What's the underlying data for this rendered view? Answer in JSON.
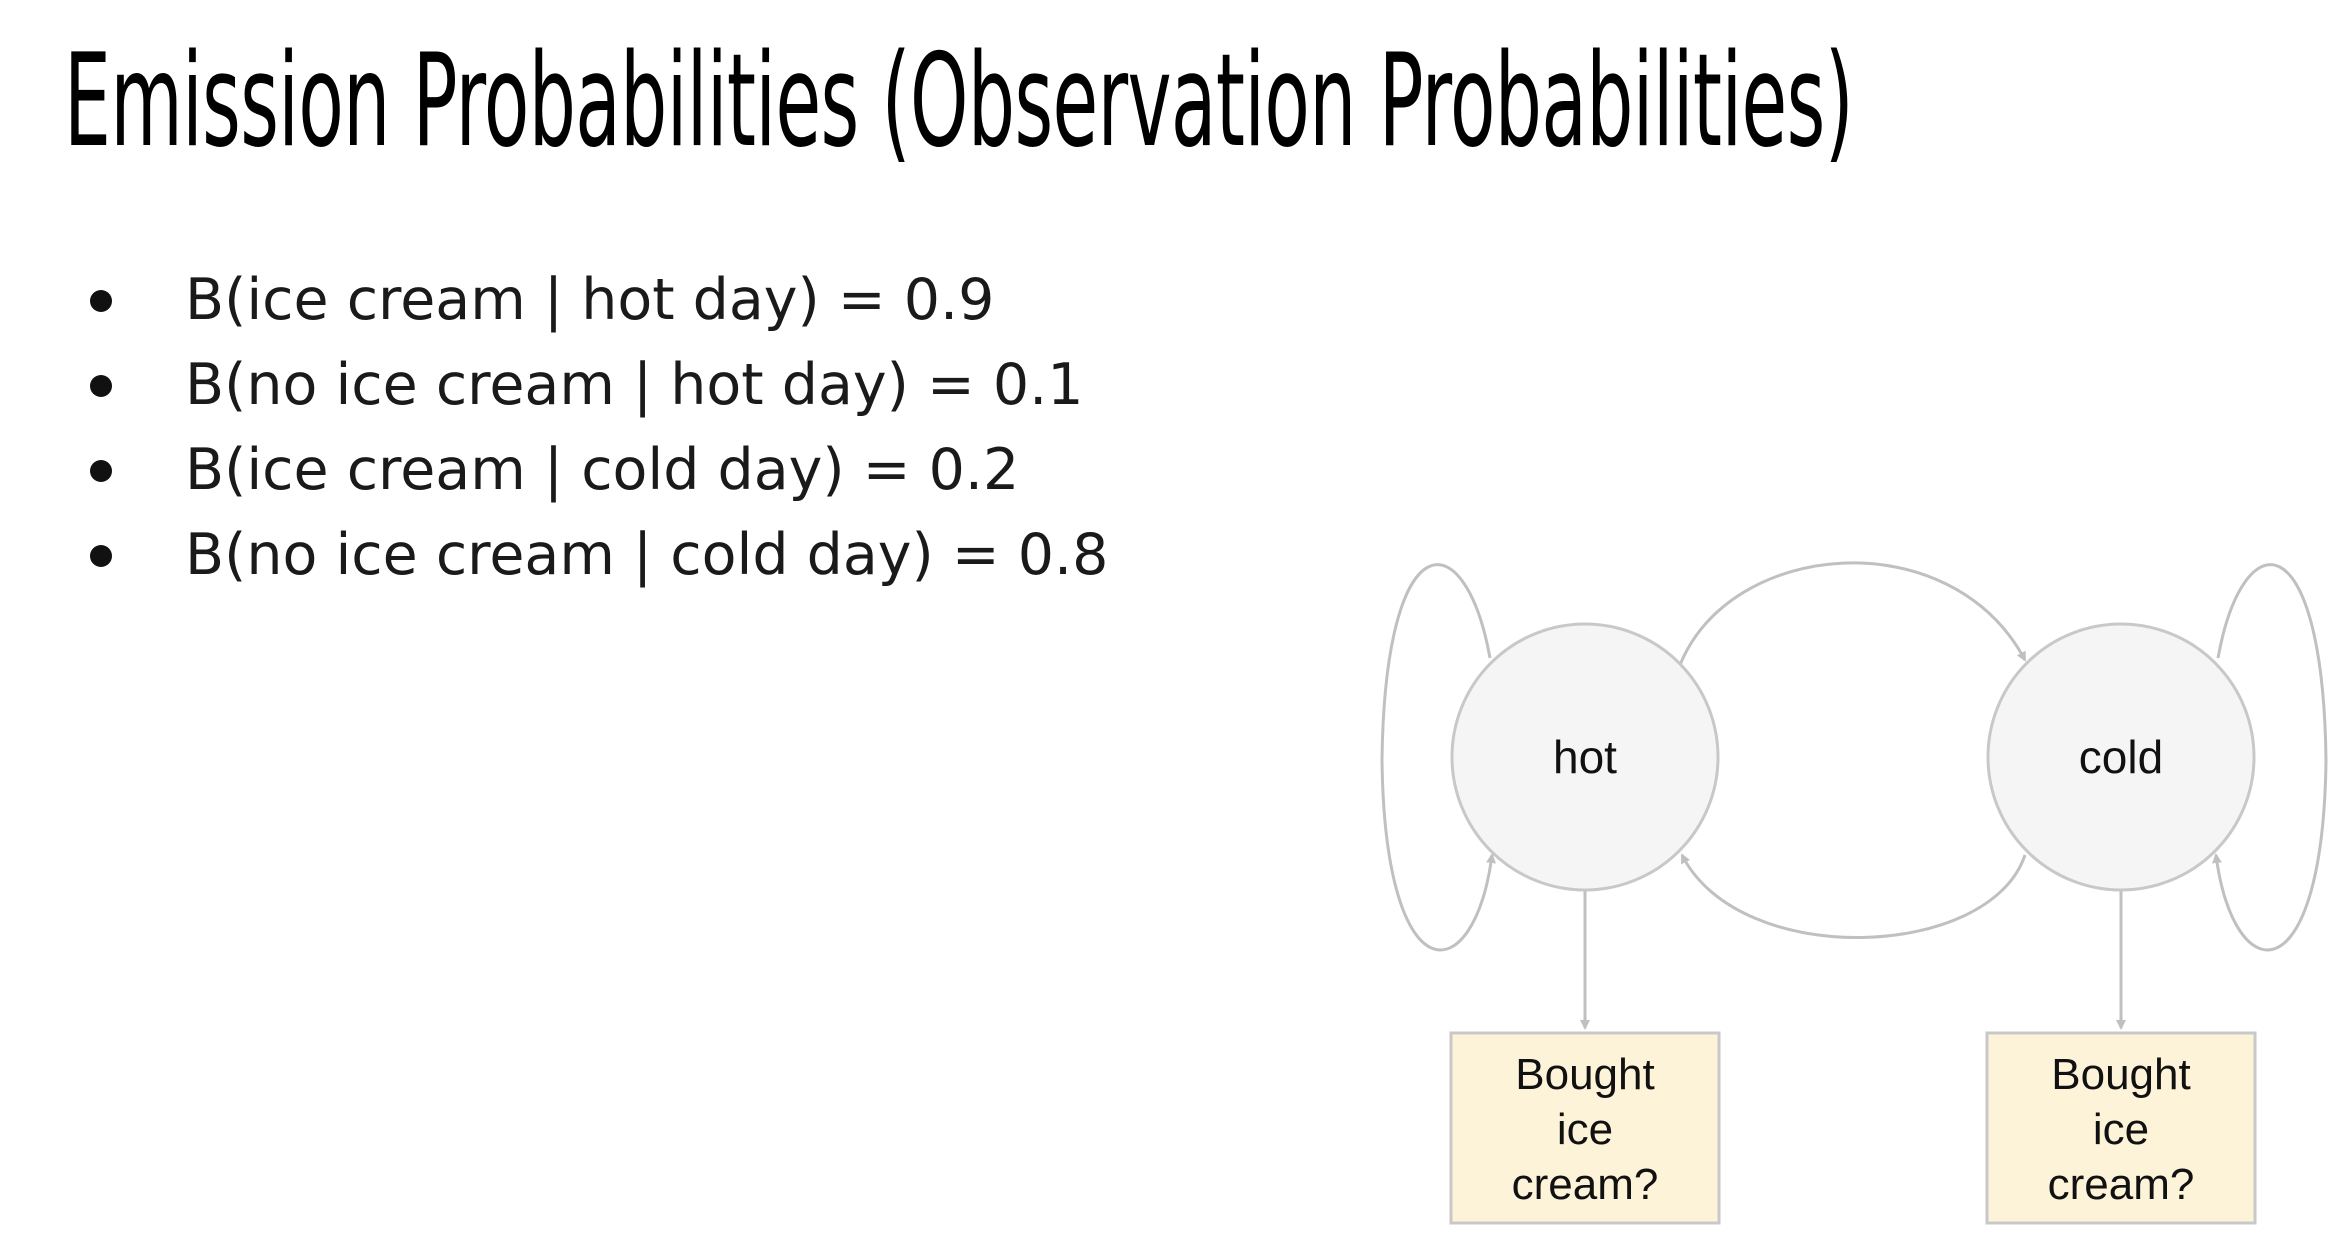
{
  "title": "Emission Probabilities (Observation Probabilities)",
  "bullets": [
    "B(ice cream | hot day) = 0.9",
    "B(no ice cream | hot day) = 0.1",
    "B(ice cream | cold day) = 0.2",
    "B(no ice cream | cold day) = 0.8"
  ],
  "diagram": {
    "states": [
      {
        "label": "hot"
      },
      {
        "label": "cold"
      }
    ],
    "observations": [
      {
        "lines": [
          "Bought",
          "ice",
          "cream?"
        ]
      },
      {
        "lines": [
          "Bought",
          "ice",
          "cream?"
        ]
      }
    ],
    "colors": {
      "state_fill": "#f5f5f5",
      "state_stroke": "#c8c8c8",
      "observation_fill": "#fdf3d8",
      "observation_stroke": "#c8c8c8",
      "edge": "#c0c0c0"
    }
  }
}
